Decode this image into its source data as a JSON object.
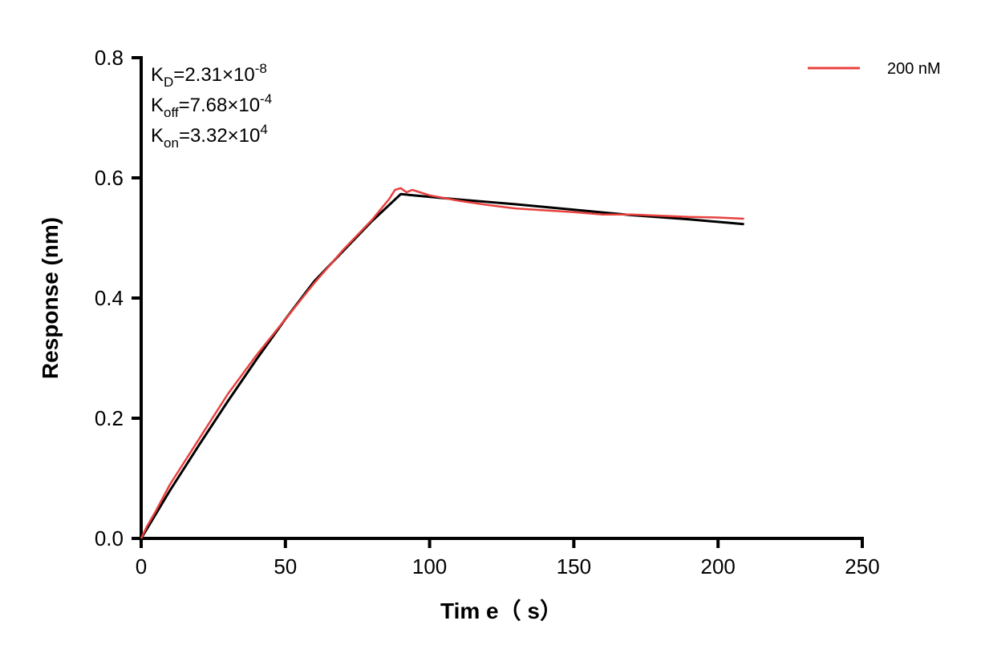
{
  "chart_data": {
    "type": "line",
    "title": "",
    "xlabel": "Tim e（ s）",
    "ylabel": "Response (nm)",
    "xlim": [
      0,
      250
    ],
    "ylim": [
      0,
      0.8
    ],
    "xticks": [
      0,
      50,
      100,
      150,
      200,
      250
    ],
    "yticks": [
      0.0,
      0.2,
      0.4,
      0.6,
      0.8
    ],
    "xtick_labels": [
      "0",
      "50",
      "100",
      "150",
      "200",
      "250"
    ],
    "ytick_labels": [
      "0.0",
      "0.2",
      "0.4",
      "0.6",
      "0.8"
    ],
    "grid": false,
    "legend_position": "top-right",
    "annotations": [
      {
        "base": "K",
        "sub": "D",
        "text": "=2.31×10",
        "sup": "-8"
      },
      {
        "base": "K",
        "sub": "off",
        "text": "=7.68×10",
        "sup": "-4"
      },
      {
        "base": "K",
        "sub": "on",
        "text": "=3.32×10",
        "sup": "4"
      }
    ],
    "series": [
      {
        "name": "200 nM",
        "color": "#e8413e",
        "x": [
          0,
          2,
          5,
          10,
          20,
          30,
          40,
          50,
          60,
          70,
          80,
          86,
          88,
          90,
          92,
          94,
          100,
          110,
          120,
          130,
          140,
          150,
          160,
          170,
          180,
          190,
          200,
          209
        ],
        "y": [
          0,
          0.02,
          0.045,
          0.09,
          0.165,
          0.24,
          0.305,
          0.365,
          0.425,
          0.48,
          0.53,
          0.565,
          0.58,
          0.583,
          0.576,
          0.58,
          0.571,
          0.562,
          0.555,
          0.549,
          0.546,
          0.543,
          0.539,
          0.539,
          0.537,
          0.535,
          0.534,
          0.532
        ]
      },
      {
        "color": "#000000",
        "x": [
          0,
          10,
          20,
          30,
          40,
          50,
          60,
          70,
          80,
          90,
          110,
          130,
          150,
          170,
          190,
          209
        ],
        "y": [
          0,
          0.08,
          0.155,
          0.228,
          0.298,
          0.365,
          0.428,
          0.478,
          0.528,
          0.573,
          0.564,
          0.556,
          0.547,
          0.538,
          0.531,
          0.523
        ]
      }
    ]
  }
}
